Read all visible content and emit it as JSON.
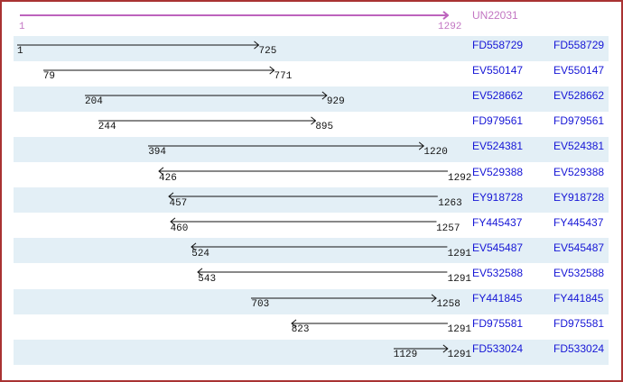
{
  "colors": {
    "page_border": "#a93232",
    "row_stripe": "#e3eff6",
    "ruler_accent": "#bd63bd",
    "ruler_text": "#c275c2",
    "accession_blue": "#1616d6",
    "read_arrow": "#111111",
    "coord_text": "#111111"
  },
  "scale": {
    "start": 1,
    "end": 1292
  },
  "ruler": {
    "label": "UN22031",
    "start": 1,
    "end": 1292,
    "start_label": "1",
    "end_label": "1292",
    "direction": "right"
  },
  "reads": [
    {
      "label": "FD558729",
      "start": 1,
      "end": 725,
      "direction": "right"
    },
    {
      "label": "EV550147",
      "start": 79,
      "end": 771,
      "direction": "right"
    },
    {
      "label": "EV528662",
      "start": 204,
      "end": 929,
      "direction": "right"
    },
    {
      "label": "FD979561",
      "start": 244,
      "end": 895,
      "direction": "right"
    },
    {
      "label": "EV524381",
      "start": 394,
      "end": 1220,
      "direction": "right"
    },
    {
      "label": "EV529388",
      "start": 426,
      "end": 1292,
      "direction": "left"
    },
    {
      "label": "EY918728",
      "start": 457,
      "end": 1263,
      "direction": "left"
    },
    {
      "label": "FY445437",
      "start": 460,
      "end": 1257,
      "direction": "left"
    },
    {
      "label": "EV545487",
      "start": 524,
      "end": 1291,
      "direction": "left"
    },
    {
      "label": "EV532588",
      "start": 543,
      "end": 1291,
      "direction": "left"
    },
    {
      "label": "FY441845",
      "start": 703,
      "end": 1258,
      "direction": "right"
    },
    {
      "label": "FD975581",
      "start": 823,
      "end": 1291,
      "direction": "left"
    },
    {
      "label": "FD533024",
      "start": 1129,
      "end": 1291,
      "direction": "right"
    }
  ]
}
